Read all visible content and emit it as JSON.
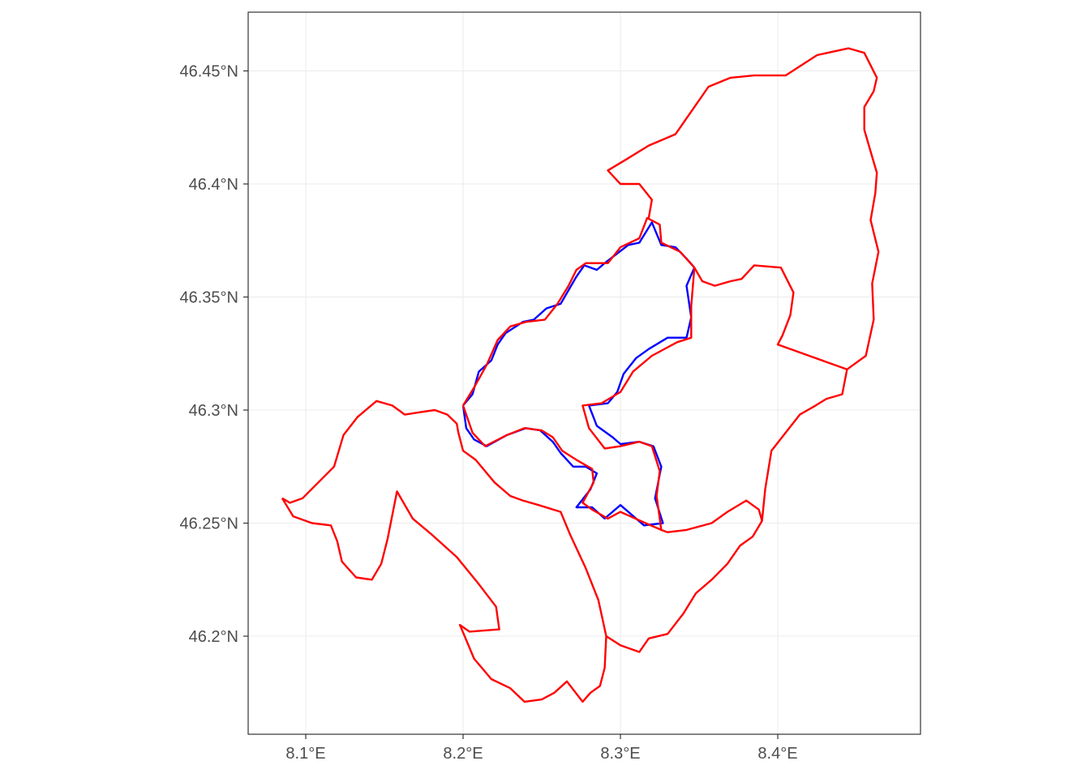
{
  "map": {
    "x_axis": {
      "ticks": [
        {
          "value": 8.1,
          "label": "8.1°E"
        },
        {
          "value": 8.2,
          "label": "8.2°E"
        },
        {
          "value": 8.3,
          "label": "8.3°E"
        },
        {
          "value": 8.4,
          "label": "8.4°E"
        }
      ]
    },
    "y_axis": {
      "ticks": [
        {
          "value": 46.2,
          "label": "46.2°N"
        },
        {
          "value": 46.25,
          "label": "46.25°N"
        },
        {
          "value": 46.3,
          "label": "46.3°N"
        },
        {
          "value": 46.35,
          "label": "46.35°N"
        },
        {
          "value": 46.4,
          "label": "46.4°N"
        },
        {
          "value": 46.45,
          "label": "46.45°N"
        }
      ]
    },
    "colors": {
      "panel_border": "#333333",
      "grid": "#ebebeb",
      "tick_mark": "#333333",
      "blue_outline": "#0000ff",
      "red_outline": "#ff0000"
    },
    "blue_outline_lonlat": [
      [
        8.2,
        46.302
      ],
      [
        8.206,
        46.307
      ],
      [
        8.21,
        46.317
      ],
      [
        8.218,
        46.322
      ],
      [
        8.222,
        46.329
      ],
      [
        8.227,
        46.334
      ],
      [
        8.238,
        46.339
      ],
      [
        8.245,
        46.34
      ],
      [
        8.253,
        46.345
      ],
      [
        8.262,
        46.347
      ],
      [
        8.267,
        46.353
      ],
      [
        8.272,
        46.359
      ],
      [
        8.277,
        46.364
      ],
      [
        8.285,
        46.362
      ],
      [
        8.29,
        46.365
      ],
      [
        8.305,
        46.373
      ],
      [
        8.312,
        46.374
      ],
      [
        8.32,
        46.383
      ],
      [
        8.326,
        46.373
      ],
      [
        8.335,
        46.372
      ],
      [
        8.342,
        46.367
      ],
      [
        8.347,
        46.363
      ],
      [
        8.342,
        46.355
      ],
      [
        8.345,
        46.341
      ],
      [
        8.342,
        46.332
      ],
      [
        8.33,
        46.332
      ],
      [
        8.318,
        46.327
      ],
      [
        8.31,
        46.323
      ],
      [
        8.302,
        46.316
      ],
      [
        8.298,
        46.308
      ],
      [
        8.292,
        46.303
      ],
      [
        8.28,
        46.302
      ],
      [
        8.285,
        46.293
      ],
      [
        8.295,
        46.288
      ],
      [
        8.3,
        46.285
      ],
      [
        8.312,
        46.286
      ],
      [
        8.321,
        46.284
      ],
      [
        8.326,
        46.275
      ],
      [
        8.322,
        46.261
      ],
      [
        8.327,
        46.25
      ],
      [
        8.315,
        46.249
      ],
      [
        8.3,
        46.258
      ],
      [
        8.29,
        46.252
      ],
      [
        8.282,
        46.257
      ],
      [
        8.272,
        46.257
      ],
      [
        8.281,
        46.265
      ],
      [
        8.285,
        46.272
      ],
      [
        8.278,
        46.275
      ],
      [
        8.27,
        46.275
      ],
      [
        8.262,
        46.281
      ],
      [
        8.257,
        46.286
      ],
      [
        8.249,
        46.291
      ],
      [
        8.24,
        46.292
      ],
      [
        8.228,
        46.289
      ],
      [
        8.215,
        46.284
      ],
      [
        8.207,
        46.287
      ],
      [
        8.202,
        46.292
      ],
      [
        8.2,
        46.302
      ]
    ],
    "red_outlines_lonlat": [
      [
        [
          8.2,
          46.302
        ],
        [
          8.207,
          46.31
        ],
        [
          8.215,
          46.32
        ],
        [
          8.222,
          46.331
        ],
        [
          8.23,
          46.337
        ],
        [
          8.24,
          46.339
        ],
        [
          8.252,
          46.34
        ],
        [
          8.26,
          46.347
        ],
        [
          8.267,
          46.355
        ],
        [
          8.272,
          46.362
        ],
        [
          8.278,
          46.365
        ],
        [
          8.292,
          46.365
        ],
        [
          8.3,
          46.372
        ],
        [
          8.312,
          46.376
        ],
        [
          8.317,
          46.385
        ],
        [
          8.325,
          46.382
        ],
        [
          8.326,
          46.374
        ],
        [
          8.338,
          46.37
        ],
        [
          8.347,
          46.363
        ],
        [
          8.345,
          46.346
        ],
        [
          8.345,
          46.332
        ],
        [
          8.336,
          46.33
        ],
        [
          8.32,
          46.324
        ],
        [
          8.308,
          46.317
        ],
        [
          8.3,
          46.308
        ],
        [
          8.288,
          46.303
        ],
        [
          8.276,
          46.302
        ],
        [
          8.28,
          46.292
        ],
        [
          8.29,
          46.283
        ],
        [
          8.3,
          46.284
        ],
        [
          8.312,
          46.286
        ],
        [
          8.32,
          46.284
        ],
        [
          8.325,
          46.273
        ],
        [
          8.323,
          46.262
        ],
        [
          8.326,
          46.247
        ],
        [
          8.316,
          46.25
        ],
        [
          8.3,
          46.255
        ],
        [
          8.292,
          46.252
        ],
        [
          8.282,
          46.256
        ],
        [
          8.276,
          46.259
        ],
        [
          8.283,
          46.268
        ],
        [
          8.282,
          46.274
        ],
        [
          8.272,
          46.278
        ],
        [
          8.263,
          46.282
        ],
        [
          8.257,
          46.288
        ],
        [
          8.25,
          46.291
        ],
        [
          8.239,
          46.292
        ],
        [
          8.228,
          46.289
        ],
        [
          8.214,
          46.284
        ],
        [
          8.206,
          46.29
        ],
        [
          8.2,
          46.302
        ]
      ],
      [
        [
          8.085,
          46.261
        ],
        [
          8.092,
          46.253
        ],
        [
          8.104,
          46.25
        ],
        [
          8.116,
          46.249
        ],
        [
          8.12,
          46.242
        ],
        [
          8.123,
          46.233
        ],
        [
          8.132,
          46.226
        ],
        [
          8.142,
          46.225
        ],
        [
          8.148,
          46.232
        ],
        [
          8.152,
          46.243
        ],
        [
          8.158,
          46.264
        ],
        [
          8.168,
          46.252
        ],
        [
          8.18,
          46.245
        ],
        [
          8.196,
          46.235
        ],
        [
          8.21,
          46.223
        ],
        [
          8.221,
          46.213
        ],
        [
          8.223,
          46.203
        ],
        [
          8.204,
          46.202
        ],
        [
          8.198,
          46.205
        ],
        [
          8.207,
          46.19
        ],
        [
          8.218,
          46.181
        ],
        [
          8.23,
          46.177
        ],
        [
          8.239,
          46.171
        ],
        [
          8.25,
          46.172
        ],
        [
          8.258,
          46.175
        ],
        [
          8.266,
          46.18
        ],
        [
          8.276,
          46.171
        ],
        [
          8.281,
          46.175
        ],
        [
          8.287,
          46.178
        ],
        [
          8.29,
          46.186
        ],
        [
          8.291,
          46.2
        ],
        [
          8.286,
          46.216
        ],
        [
          8.278,
          46.23
        ],
        [
          8.268,
          46.245
        ],
        [
          8.262,
          46.255
        ],
        [
          8.248,
          46.258
        ],
        [
          8.238,
          46.26
        ],
        [
          8.23,
          46.262
        ],
        [
          8.22,
          46.268
        ],
        [
          8.208,
          46.278
        ],
        [
          8.2,
          46.282
        ],
        [
          8.197,
          46.29
        ],
        [
          8.196,
          46.294
        ],
        [
          8.19,
          46.298
        ],
        [
          8.182,
          46.3
        ],
        [
          8.172,
          46.299
        ],
        [
          8.163,
          46.298
        ],
        [
          8.155,
          46.302
        ],
        [
          8.145,
          46.304
        ],
        [
          8.133,
          46.297
        ],
        [
          8.124,
          46.289
        ],
        [
          8.118,
          46.275
        ],
        [
          8.108,
          46.268
        ],
        [
          8.098,
          46.261
        ],
        [
          8.09,
          46.259
        ],
        [
          8.085,
          46.261
        ]
      ],
      [
        [
          8.291,
          46.2
        ],
        [
          8.3,
          46.196
        ],
        [
          8.312,
          46.193
        ],
        [
          8.318,
          46.199
        ],
        [
          8.33,
          46.201
        ],
        [
          8.34,
          46.21
        ],
        [
          8.348,
          46.219
        ],
        [
          8.358,
          46.225
        ],
        [
          8.368,
          46.232
        ],
        [
          8.376,
          46.24
        ],
        [
          8.384,
          46.244
        ],
        [
          8.39,
          46.251
        ],
        [
          8.388,
          46.256
        ],
        [
          8.38,
          46.26
        ],
        [
          8.368,
          46.255
        ],
        [
          8.358,
          46.25
        ],
        [
          8.342,
          46.247
        ],
        [
          8.33,
          46.246
        ],
        [
          8.326,
          46.247
        ]
      ],
      [
        [
          8.39,
          46.251
        ],
        [
          8.392,
          46.265
        ],
        [
          8.396,
          46.282
        ],
        [
          8.405,
          46.29
        ],
        [
          8.414,
          46.298
        ],
        [
          8.424,
          46.302
        ],
        [
          8.431,
          46.305
        ],
        [
          8.441,
          46.307
        ],
        [
          8.444,
          46.318
        ],
        [
          8.4,
          46.329
        ],
        [
          8.403,
          46.333
        ],
        [
          8.408,
          46.342
        ],
        [
          8.41,
          46.352
        ],
        [
          8.402,
          46.363
        ],
        [
          8.385,
          46.364
        ],
        [
          8.377,
          46.358
        ],
        [
          8.37,
          46.357
        ],
        [
          8.36,
          46.355
        ],
        [
          8.352,
          46.357
        ],
        [
          8.347,
          46.363
        ]
      ],
      [
        [
          8.444,
          46.318
        ],
        [
          8.456,
          46.324
        ],
        [
          8.461,
          46.34
        ],
        [
          8.46,
          46.356
        ],
        [
          8.464,
          46.37
        ],
        [
          8.459,
          46.384
        ],
        [
          8.462,
          46.396
        ],
        [
          8.463,
          46.405
        ],
        [
          8.46,
          46.412
        ],
        [
          8.455,
          46.424
        ],
        [
          8.455,
          46.434
        ],
        [
          8.461,
          46.441
        ],
        [
          8.463,
          46.447
        ],
        [
          8.455,
          46.458
        ],
        [
          8.445,
          46.46
        ],
        [
          8.425,
          46.457
        ],
        [
          8.405,
          46.448
        ],
        [
          8.385,
          46.448
        ],
        [
          8.37,
          46.447
        ],
        [
          8.356,
          46.443
        ],
        [
          8.345,
          46.432
        ],
        [
          8.335,
          46.422
        ],
        [
          8.318,
          46.417
        ],
        [
          8.304,
          46.411
        ],
        [
          8.292,
          46.406
        ],
        [
          8.3,
          46.4
        ],
        [
          8.312,
          46.4
        ],
        [
          8.32,
          46.393
        ],
        [
          8.318,
          46.385
        ]
      ]
    ]
  }
}
